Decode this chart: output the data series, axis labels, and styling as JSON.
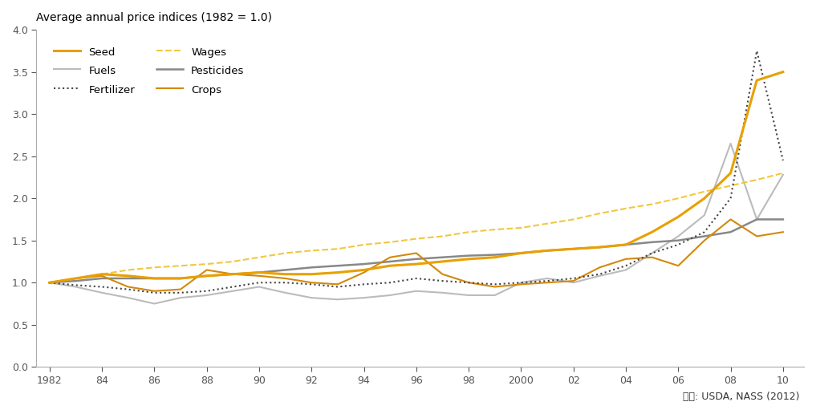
{
  "title": "Average annual price indices (1982 = 1.0)",
  "source": "자료: USDA, NASS (2012)",
  "years": [
    1982,
    1983,
    1984,
    1985,
    1986,
    1987,
    1988,
    1989,
    1990,
    1991,
    1992,
    1993,
    1994,
    1995,
    1996,
    1997,
    1998,
    1999,
    2000,
    2001,
    2002,
    2003,
    2004,
    2005,
    2006,
    2007,
    2008,
    2009,
    2010
  ],
  "seed": [
    1.0,
    1.05,
    1.1,
    1.08,
    1.05,
    1.05,
    1.08,
    1.1,
    1.12,
    1.1,
    1.1,
    1.12,
    1.15,
    1.2,
    1.22,
    1.25,
    1.28,
    1.3,
    1.35,
    1.38,
    1.4,
    1.42,
    1.45,
    1.6,
    1.78,
    2.0,
    2.3,
    3.4,
    3.5
  ],
  "fertilizer": [
    1.0,
    0.97,
    0.95,
    0.92,
    0.88,
    0.88,
    0.9,
    0.95,
    1.0,
    1.0,
    0.98,
    0.95,
    0.98,
    1.0,
    1.05,
    1.02,
    1.0,
    0.98,
    1.0,
    1.02,
    1.05,
    1.1,
    1.2,
    1.35,
    1.45,
    1.6,
    2.0,
    3.75,
    2.45
  ],
  "pesticides": [
    1.0,
    1.02,
    1.05,
    1.05,
    1.05,
    1.05,
    1.08,
    1.1,
    1.12,
    1.15,
    1.18,
    1.2,
    1.22,
    1.25,
    1.28,
    1.3,
    1.32,
    1.33,
    1.35,
    1.38,
    1.4,
    1.42,
    1.45,
    1.48,
    1.5,
    1.55,
    1.6,
    1.75,
    1.75
  ],
  "fuels": [
    1.0,
    0.95,
    0.88,
    0.82,
    0.75,
    0.82,
    0.85,
    0.9,
    0.95,
    0.88,
    0.82,
    0.8,
    0.82,
    0.85,
    0.9,
    0.88,
    0.85,
    0.85,
    1.0,
    1.05,
    1.0,
    1.08,
    1.15,
    1.35,
    1.55,
    1.8,
    2.65,
    1.75,
    2.28
  ],
  "wages": [
    1.0,
    1.05,
    1.1,
    1.15,
    1.18,
    1.2,
    1.22,
    1.25,
    1.3,
    1.35,
    1.38,
    1.4,
    1.45,
    1.48,
    1.52,
    1.55,
    1.6,
    1.63,
    1.65,
    1.7,
    1.75,
    1.82,
    1.88,
    1.93,
    2.0,
    2.08,
    2.15,
    2.22,
    2.3
  ],
  "crops": [
    1.0,
    1.05,
    1.08,
    0.95,
    0.9,
    0.92,
    1.15,
    1.1,
    1.08,
    1.05,
    1.0,
    0.98,
    1.12,
    1.3,
    1.35,
    1.1,
    1.0,
    0.95,
    0.98,
    1.0,
    1.02,
    1.18,
    1.28,
    1.3,
    1.2,
    1.5,
    1.75,
    1.55,
    1.6
  ],
  "seed_color": "#E8A000",
  "fertilizer_color": "#444444",
  "pesticides_color": "#888888",
  "fuels_color": "#BBBBBB",
  "wages_color": "#F0C840",
  "crops_color": "#D4880A",
  "ylim": [
    0.0,
    4.0
  ],
  "yticks": [
    0.0,
    0.5,
    1.0,
    1.5,
    2.0,
    2.5,
    3.0,
    3.5,
    4.0
  ],
  "xticks": [
    1982,
    1984,
    1986,
    1988,
    1990,
    1992,
    1994,
    1996,
    1998,
    2000,
    2002,
    2004,
    2006,
    2008,
    2010
  ],
  "xticklabels": [
    "1982",
    "84",
    "86",
    "88",
    "90",
    "92",
    "94",
    "96",
    "98",
    "2000",
    "02",
    "04",
    "06",
    "08",
    "10"
  ]
}
